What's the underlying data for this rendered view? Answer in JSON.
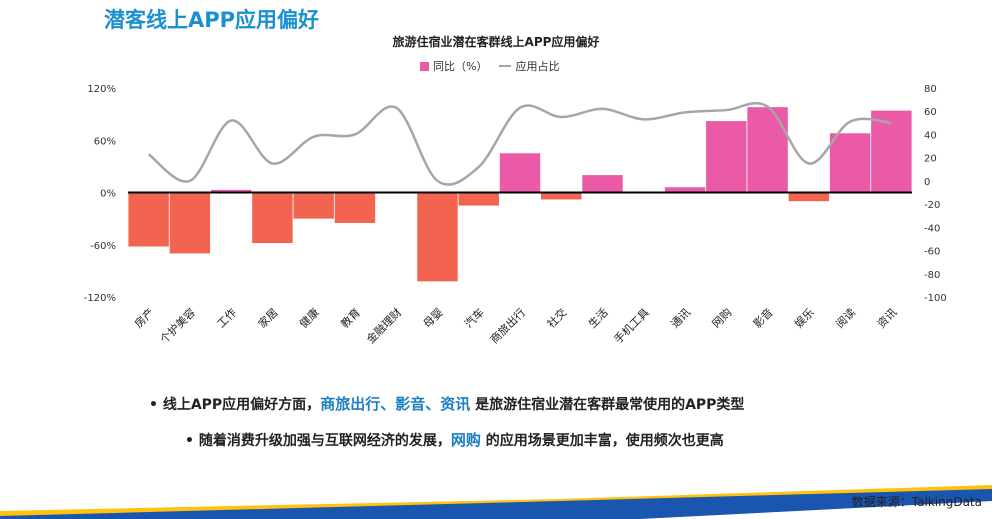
{
  "page": {
    "title": "潜客线上APP应用偏好",
    "source": "数据来源：TalkingData"
  },
  "bullets": [
    {
      "prefix": "• 线上APP应用偏好方面，",
      "highlight": "商旅出行、影音、资讯",
      "suffix": " 是旅游住宿业潜在客群最常使用的APP类型"
    },
    {
      "prefix": "• 随着消费升级加强与互联网经济的发展，",
      "highlight": "网购",
      "suffix": " 的应用场景更加丰富，使用频次也更高"
    }
  ],
  "colors": {
    "positive_bar": "#ea5aa6",
    "negative_bar": "#f36450",
    "line": "#a6a6a6",
    "title": "#1c8fd0",
    "highlight": "#1c7fc2",
    "band_blue": "#1a55b0",
    "band_yellow": "#ffc20e"
  },
  "chart_data": {
    "type": "bar",
    "title": "旅游住宿业潜在客群线上APP应用偏好",
    "categories": [
      "房产",
      "个护美容",
      "工作",
      "家居",
      "健康",
      "教育",
      "金融理财",
      "母婴",
      "汽车",
      "商旅出行",
      "社交",
      "生活",
      "手机工具",
      "通讯",
      "网购",
      "影音",
      "娱乐",
      "阅读",
      "资讯"
    ],
    "series": [
      {
        "name": "同比（%）",
        "type": "bar",
        "axis": "left",
        "values": [
          -62,
          -70,
          3,
          -58,
          -30,
          -35,
          1,
          -102,
          -15,
          45,
          -8,
          20,
          1,
          6,
          82,
          98,
          -10,
          68,
          94
        ]
      },
      {
        "name": "应用占比",
        "type": "line",
        "axis": "right",
        "values": [
          23,
          0,
          52,
          15,
          38,
          40,
          63,
          0,
          12,
          63,
          55,
          62,
          53,
          59,
          61,
          64,
          15,
          51,
          50
        ]
      }
    ],
    "y_left": {
      "min": -120,
      "max": 120,
      "ticks": [
        120,
        60,
        0,
        -60,
        -120
      ],
      "tick_labels": [
        "120%",
        "60%",
        "0%",
        "-60%",
        "-120%"
      ]
    },
    "y_right": {
      "min": -100,
      "max": 80,
      "ticks": [
        80,
        60,
        40,
        20,
        0,
        -20,
        -40,
        -60,
        -80,
        -100
      ],
      "tick_labels": [
        "80",
        "60",
        "40",
        "20",
        "0",
        "-20",
        "-40",
        "-60",
        "-80",
        "-100"
      ]
    },
    "legend": [
      {
        "label": "同比（%）",
        "kind": "bar"
      },
      {
        "label": "应用占比",
        "kind": "line"
      }
    ],
    "legend_position": "top-center",
    "grid": false
  }
}
